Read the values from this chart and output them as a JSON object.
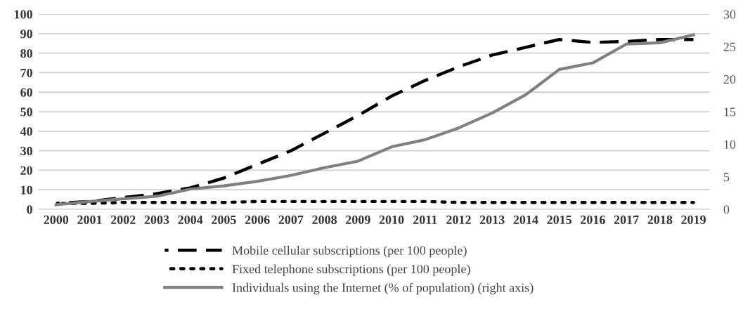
{
  "chart_data": {
    "type": "line",
    "categories": [
      "2000",
      "2001",
      "2002",
      "2003",
      "2004",
      "2005",
      "2006",
      "2007",
      "2008",
      "2009",
      "2010",
      "2011",
      "2012",
      "2013",
      "2014",
      "2015",
      "2016",
      "2017",
      "2018",
      "2019"
    ],
    "series": [
      {
        "name": "Mobile cellular subscriptions (per 100 people)",
        "color": "#000000",
        "line_style": "dashed",
        "values": [
          3,
          4,
          6,
          8,
          11,
          16,
          23,
          30,
          39,
          48,
          58,
          66,
          73,
          79,
          83,
          87,
          85.5,
          86,
          87,
          87
        ]
      },
      {
        "name": "Fixed telephone subscriptions (per 100 people)",
        "color": "#000000",
        "line_style": "dotted",
        "values": [
          3,
          3,
          3.5,
          3.5,
          3.5,
          3.5,
          4,
          4,
          4,
          4,
          4,
          4,
          3.5,
          3.5,
          3.5,
          3.5,
          3.5,
          3.5,
          3.5,
          3.5
        ]
      },
      {
        "name": "Individuals using the Internet (% of population) (right axis)",
        "color": "#808080",
        "line_style": "solid",
        "axis": "y2",
        "values": [
          0.7,
          1.2,
          1.6,
          2,
          3.1,
          3.6,
          4.3,
          5.2,
          6.4,
          7.4,
          9.6,
          10.7,
          12.5,
          14.8,
          17.6,
          21.5,
          22.5,
          25.4,
          25.6,
          26.8
        ]
      }
    ],
    "ylim": [
      0,
      100
    ],
    "yticks": [
      0,
      10,
      20,
      30,
      40,
      50,
      60,
      70,
      80,
      90,
      100
    ],
    "y2lim": [
      0,
      30
    ],
    "y2ticks": [
      0,
      5,
      10,
      15,
      20,
      25,
      30
    ],
    "grid": "y",
    "legend": "bottom",
    "marker": "none"
  }
}
